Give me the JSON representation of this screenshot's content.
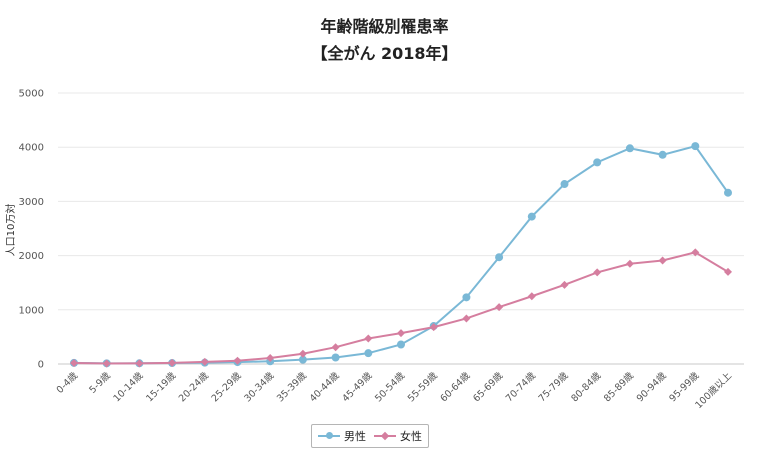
{
  "chart_data": {
    "type": "line",
    "title": "年齢階級別罹患率",
    "subtitle": "【全がん 2018年】",
    "ylabel": "人口10万対",
    "xlabel": "",
    "ylim": [
      0,
      5000
    ],
    "yticks": [
      0,
      1000,
      2000,
      3000,
      4000,
      5000
    ],
    "grid": true,
    "legend_position": "bottom",
    "categories": [
      "0-4歳",
      "5-9歳",
      "10-14歳",
      "15-19歳",
      "20-24歳",
      "25-29歳",
      "30-34歳",
      "35-39歳",
      "40-44歳",
      "45-49歳",
      "50-54歳",
      "55-59歳",
      "60-64歳",
      "65-69歳",
      "70-74歳",
      "75-79歳",
      "80-84歳",
      "85-89歳",
      "90-94歳",
      "95-99歳",
      "100歳以上"
    ],
    "series": [
      {
        "name": "男性",
        "color": "#7ab8d6",
        "marker": "circle",
        "values": [
          20,
          12,
          13,
          18,
          25,
          35,
          50,
          80,
          120,
          200,
          360,
          700,
          1230,
          1970,
          2720,
          3320,
          3720,
          3980,
          3860,
          4020,
          3160
        ]
      },
      {
        "name": "女性",
        "color": "#d57e9f",
        "marker": "diamond",
        "values": [
          18,
          10,
          12,
          20,
          40,
          60,
          110,
          190,
          310,
          470,
          570,
          680,
          840,
          1050,
          1250,
          1460,
          1690,
          1850,
          1910,
          2060,
          1700
        ]
      }
    ]
  }
}
